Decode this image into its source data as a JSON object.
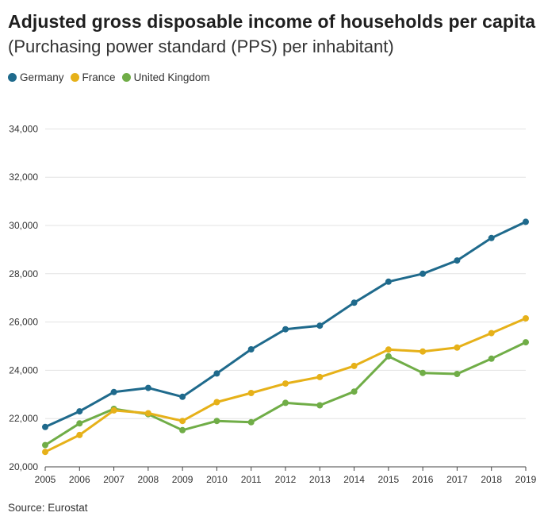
{
  "header": {
    "title": "Adjusted gross disposable income of households per capita",
    "subtitle": "(Purchasing power standard (PPS) per inhabitant)"
  },
  "legend": [
    {
      "label": "Germany",
      "color": "#1f6a8c"
    },
    {
      "label": "France",
      "color": "#e6b119"
    },
    {
      "label": "United Kingdom",
      "color": "#70ad47"
    }
  ],
  "footer": {
    "source": "Source: Eurostat"
  },
  "chart_data": {
    "type": "line",
    "title": "Adjusted gross disposable income of households per capita",
    "subtitle": "(Purchasing power standard (PPS) per inhabitant)",
    "xlabel": "",
    "ylabel": "",
    "x": [
      2005,
      2006,
      2007,
      2008,
      2009,
      2010,
      2011,
      2012,
      2013,
      2014,
      2015,
      2016,
      2017,
      2018,
      2019
    ],
    "ylim": [
      20000,
      35000
    ],
    "yticks": [
      20000,
      22000,
      24000,
      26000,
      28000,
      30000,
      32000,
      34000
    ],
    "ytick_labels": [
      "20,000",
      "22,000",
      "24,000",
      "26,000",
      "28,000",
      "30,000",
      "32,000",
      "34,000"
    ],
    "grid": true,
    "legend_position": "top-left",
    "series": [
      {
        "name": "Germany",
        "color": "#1f6a8c",
        "values": [
          21650,
          22300,
          23100,
          23270,
          22900,
          23870,
          24870,
          25700,
          25850,
          26800,
          27670,
          28000,
          28550,
          29480,
          30150
        ]
      },
      {
        "name": "France",
        "color": "#e6b119",
        "values": [
          20620,
          21320,
          22340,
          22220,
          21900,
          22680,
          23060,
          23450,
          23720,
          24180,
          24860,
          24780,
          24940,
          25540,
          26150
        ]
      },
      {
        "name": "United Kingdom",
        "color": "#70ad47",
        "values": [
          20900,
          21800,
          22400,
          22180,
          21520,
          21900,
          21850,
          22650,
          22550,
          23120,
          24580,
          23890,
          23850,
          24480,
          25160
        ]
      }
    ]
  }
}
